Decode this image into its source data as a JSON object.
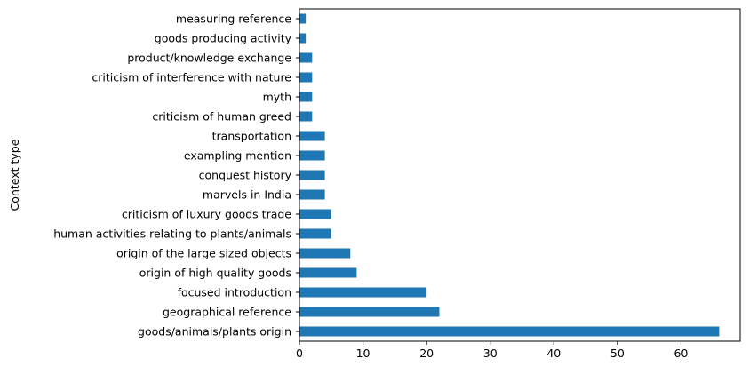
{
  "chart_data": {
    "type": "bar",
    "orientation": "horizontal",
    "title": "",
    "xlabel": "",
    "ylabel": "Context type",
    "xlim": [
      0,
      69.3
    ],
    "xticks": [
      0,
      10,
      20,
      30,
      40,
      50,
      60
    ],
    "grid": false,
    "bar_color": "#1f77b4",
    "categories": [
      "goods/animals/plants origin",
      "geographical reference",
      "focused introduction",
      "origin of high quality goods",
      "origin of the large sized objects",
      "human activities relating to plants/animals",
      "criticism of luxury goods trade",
      "marvels in India",
      "conquest history",
      "exampling mention",
      "transportation",
      "criticism of human greed",
      "myth",
      "criticism of interference with nature",
      "product/knowledge exchange",
      "goods producing activity",
      "measuring reference "
    ],
    "values": [
      66,
      22,
      20,
      9,
      8,
      5,
      5,
      4,
      4,
      4,
      4,
      2,
      2,
      2,
      2,
      1,
      1
    ]
  }
}
